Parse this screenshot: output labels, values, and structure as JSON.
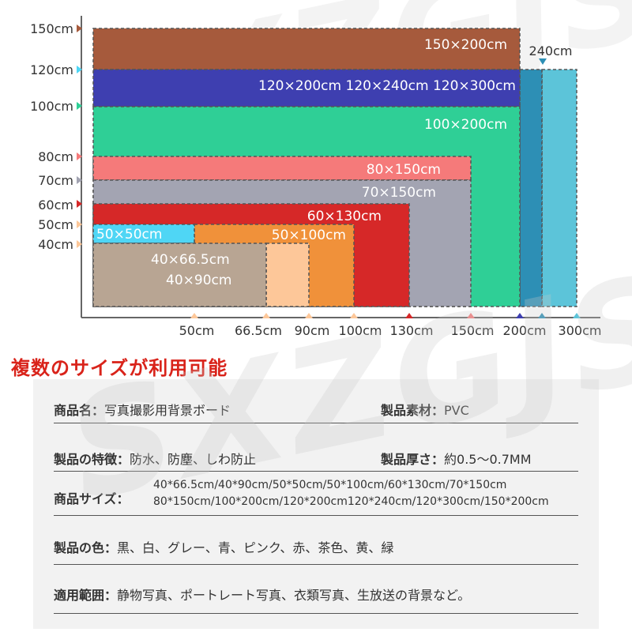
{
  "watermark": "SXZGJS",
  "heading": "複数のサイズが利用可能",
  "diagram": {
    "y_ticks": [
      "150cm",
      "120cm",
      "100cm",
      "80cm",
      "70cm",
      "60cm",
      "50cm",
      "40cm"
    ],
    "x_ticks": [
      "50cm",
      "66.5cm",
      "90cm",
      "100cm",
      "130cm",
      "150cm",
      "200cm",
      "300cm"
    ],
    "extra_label": "240cm",
    "rect_labels": {
      "r150x200": "150×200cm",
      "r120": "120×200cm 120×240cm 120×300cm",
      "r100x200": "100×200cm",
      "r80x150": "80×150cm",
      "r70x150": "70×150cm",
      "r60x130": "60×130cm",
      "r50x50": "50×50cm",
      "r50x100": "50×100cm",
      "r40a": "40×66.5cm",
      "r40b": "40×90cm"
    },
    "colors": {
      "brown": "#a65a3c",
      "blue": "#3e3fb0",
      "green": "#2fcf96",
      "pink": "#f57a7a",
      "gray": "#a3a4b2",
      "red": "#d62828",
      "skyblue": "#4fd6f5",
      "orange": "#f0913a",
      "peach": "#fdc799",
      "taupe": "#b8a593",
      "teal": "#2d8fb5",
      "lightblue": "#5cc4d9"
    }
  },
  "specs": {
    "name_label": "商品名：",
    "name_value": "写真撮影用背景ボード",
    "material_label": "製品素材：",
    "material_value": "PVC",
    "feature_label": "製品の特徴：",
    "feature_value": "防水、防塵、しわ防止",
    "thickness_label": "製品厚さ：",
    "thickness_value": "約0.5～0.7MM",
    "size_label": "商品サイズ：",
    "size_line1": "40*66.5cm/40*90cm/50*50cm/50*100cm/60*130cm/70*150cm",
    "size_line2": "80*150cm/100*200cm/120*200cm120*240cm/120*300cm/150*200cm",
    "color_label": "製品の色：",
    "color_value": "黒、白、グレー、青、ピンク、赤、茶色、黄、緑",
    "use_label": "適用範囲：",
    "use_value": "静物写真、ポートレート写真、衣類写真、生放送の背景など。"
  }
}
